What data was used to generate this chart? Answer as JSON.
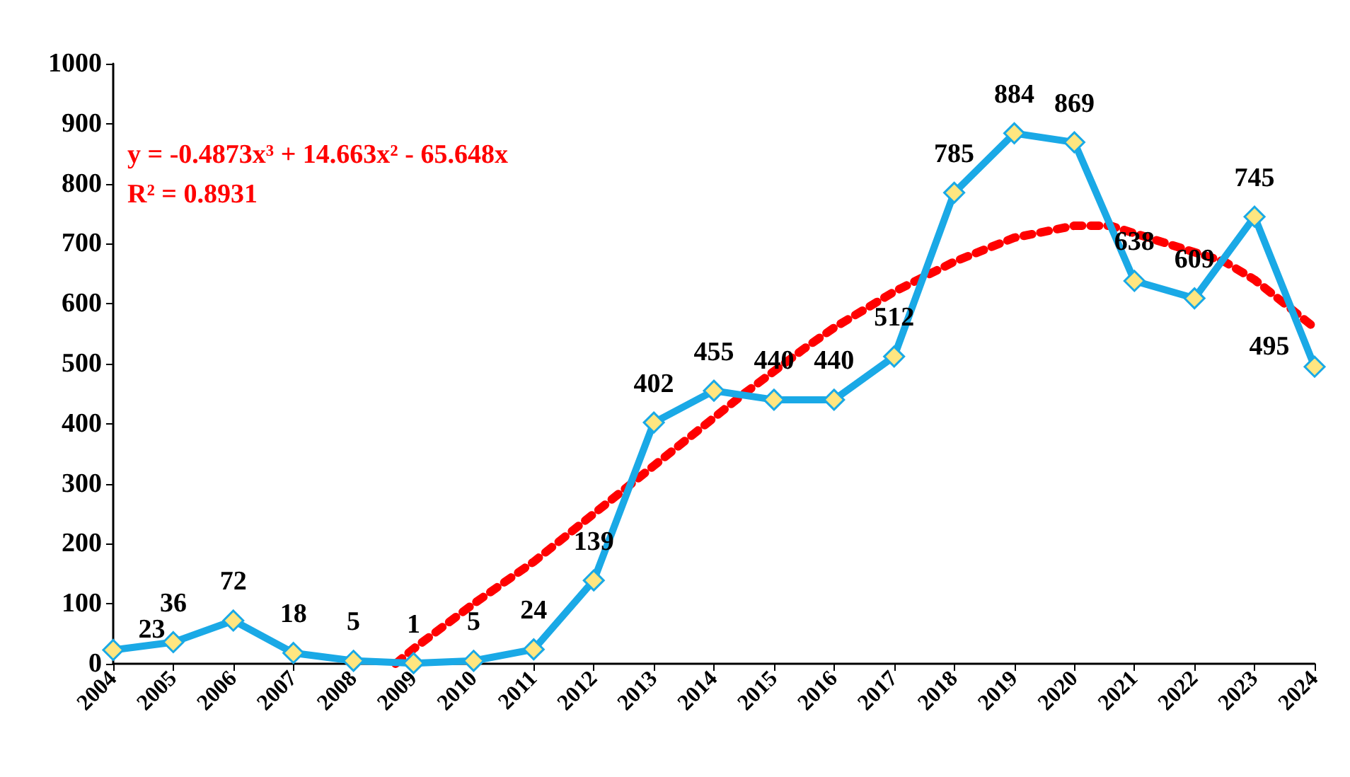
{
  "chart_data": {
    "type": "line",
    "x": [
      2004,
      2005,
      2006,
      2007,
      2008,
      2009,
      2010,
      2011,
      2012,
      2013,
      2014,
      2015,
      2016,
      2017,
      2018,
      2019,
      2020,
      2021,
      2022,
      2023,
      2024
    ],
    "series": [
      {
        "type": "line",
        "color": "#1aa9e6",
        "values": [
          23,
          36,
          72,
          18,
          5,
          1,
          5,
          24,
          139,
          402,
          455,
          440,
          440,
          512,
          785,
          884,
          869,
          638,
          609,
          745,
          495
        ],
        "marker": "diamond",
        "line_style": "solid",
        "data_labels": true
      },
      {
        "type": "line",
        "color": "#ff0000",
        "x": [
          2008.7,
          2009,
          2010,
          2011,
          2012,
          2013,
          2014,
          2014.5,
          2015.5,
          2016,
          2017,
          2018,
          2019,
          2020,
          2020.6,
          2022.5,
          2023,
          2024
        ],
        "values": [
          0,
          25,
          100,
          170,
          250,
          330,
          410,
          450,
          525,
          560,
          620,
          670,
          710,
          730,
          730,
          670,
          640,
          560
        ],
        "marker": "none",
        "line_style": "dotted"
      }
    ],
    "xlim": [
      2004,
      2024
    ],
    "xticks": [
      2004,
      2005,
      2006,
      2007,
      2008,
      2009,
      2010,
      2011,
      2012,
      2013,
      2014,
      2015,
      2016,
      2017,
      2018,
      2019,
      2020,
      2021,
      2022,
      2023,
      2024
    ],
    "ylim": [
      0,
      1000
    ],
    "yticks": [
      0,
      100,
      200,
      300,
      400,
      500,
      600,
      700,
      800,
      900,
      1000
    ],
    "annotations": [
      "y = -0.4873x³ + 14.663x² - 65.648x",
      "R² = 0.8931"
    ],
    "grid": false
  }
}
